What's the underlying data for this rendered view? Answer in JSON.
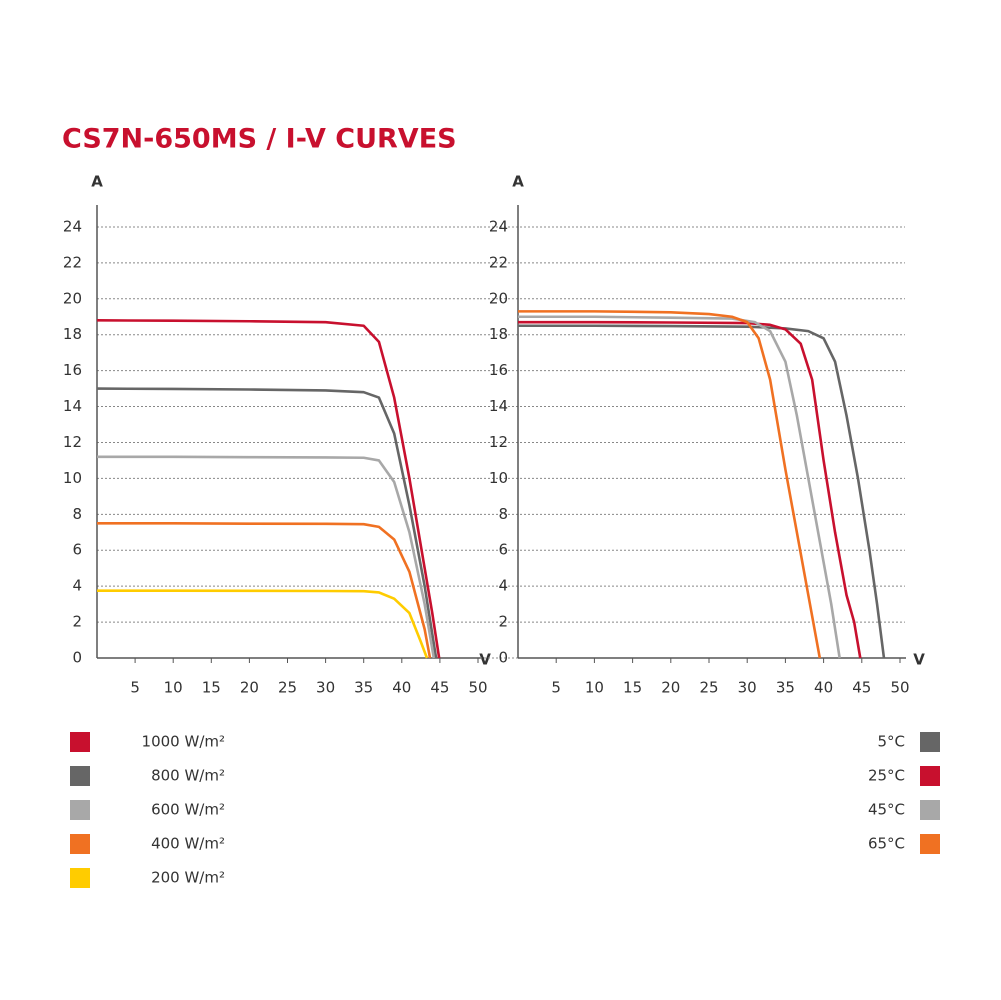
{
  "title": "CS7N-650MS / I-V CURVES",
  "chart_data": [
    {
      "type": "line",
      "y_label": "A",
      "x_label": "V",
      "xlim": [
        0,
        50
      ],
      "ylim": [
        0,
        25
      ],
      "xticks": [
        5,
        10,
        15,
        20,
        25,
        30,
        35,
        40,
        45,
        50
      ],
      "yticks": [
        0,
        2,
        4,
        6,
        8,
        10,
        12,
        14,
        16,
        18,
        20,
        22,
        24
      ],
      "grid": true,
      "legend": "bottom-left",
      "series": [
        {
          "name": "1000 W/m²",
          "color": "#c8102e",
          "x": [
            0,
            10,
            20,
            30,
            35,
            37,
            39,
            41,
            43,
            44,
            44.9
          ],
          "values": [
            18.8,
            18.78,
            18.75,
            18.7,
            18.5,
            17.6,
            14.5,
            10,
            5,
            2.5,
            0
          ]
        },
        {
          "name": "800 W/m²",
          "color": "#666666",
          "x": [
            0,
            10,
            20,
            30,
            35,
            37,
            39,
            41,
            43,
            44.5
          ],
          "values": [
            15.0,
            14.98,
            14.95,
            14.9,
            14.8,
            14.5,
            12.5,
            8.5,
            4,
            0
          ]
        },
        {
          "name": "600 W/m²",
          "color": "#a8a8a8",
          "x": [
            0,
            10,
            20,
            30,
            35,
            37,
            39,
            41,
            43,
            44.2
          ],
          "values": [
            11.2,
            11.2,
            11.18,
            11.17,
            11.15,
            11.0,
            9.8,
            7,
            3,
            0
          ]
        },
        {
          "name": "400 W/m²",
          "color": "#f07122",
          "x": [
            0,
            10,
            20,
            30,
            35,
            37,
            39,
            41,
            43,
            43.7
          ],
          "values": [
            7.5,
            7.5,
            7.48,
            7.47,
            7.45,
            7.3,
            6.6,
            4.8,
            1.6,
            0
          ]
        },
        {
          "name": "200 W/m²",
          "color": "#ffcc00",
          "x": [
            0,
            10,
            20,
            30,
            35,
            37,
            39,
            41,
            42.5,
            43.3
          ],
          "values": [
            3.75,
            3.75,
            3.74,
            3.73,
            3.72,
            3.65,
            3.3,
            2.5,
            0.9,
            0
          ]
        }
      ]
    },
    {
      "type": "line",
      "y_label": "A",
      "x_label": "V",
      "xlim": [
        0,
        50
      ],
      "ylim": [
        0,
        25
      ],
      "xticks": [
        5,
        10,
        15,
        20,
        25,
        30,
        35,
        40,
        45,
        50
      ],
      "yticks": [
        0,
        2,
        4,
        6,
        8,
        10,
        12,
        14,
        16,
        18,
        20,
        22,
        24
      ],
      "grid": true,
      "legend": "bottom-right",
      "series": [
        {
          "name": "5°C",
          "color": "#666666",
          "x": [
            0,
            10,
            20,
            30,
            35,
            38,
            40,
            41.5,
            43,
            44.5,
            46,
            47,
            47.9
          ],
          "values": [
            18.5,
            18.5,
            18.48,
            18.45,
            18.35,
            18.2,
            17.8,
            16.5,
            13.5,
            10,
            6,
            3,
            0
          ]
        },
        {
          "name": "25°C",
          "color": "#c8102e",
          "x": [
            0,
            10,
            20,
            30,
            33,
            35,
            37,
            38.5,
            40,
            41.5,
            43,
            44,
            44.8
          ],
          "values": [
            18.7,
            18.7,
            18.68,
            18.65,
            18.55,
            18.3,
            17.5,
            15.5,
            11,
            7,
            3.5,
            2,
            0
          ]
        },
        {
          "name": "45°C",
          "color": "#a8a8a8",
          "x": [
            0,
            10,
            20,
            28,
            31,
            33,
            35,
            36.5,
            38,
            39.5,
            41,
            42.1
          ],
          "values": [
            19.0,
            19.0,
            18.95,
            18.9,
            18.7,
            18.2,
            16.5,
            13.5,
            10,
            6.5,
            3,
            0
          ]
        },
        {
          "name": "65°C",
          "color": "#f07122",
          "x": [
            0,
            10,
            20,
            25,
            28,
            30,
            31.5,
            33,
            35,
            36.5,
            38,
            39.5
          ],
          "values": [
            19.3,
            19.3,
            19.25,
            19.15,
            19.0,
            18.7,
            17.8,
            15.5,
            10.5,
            7,
            3.5,
            0
          ]
        }
      ]
    }
  ]
}
